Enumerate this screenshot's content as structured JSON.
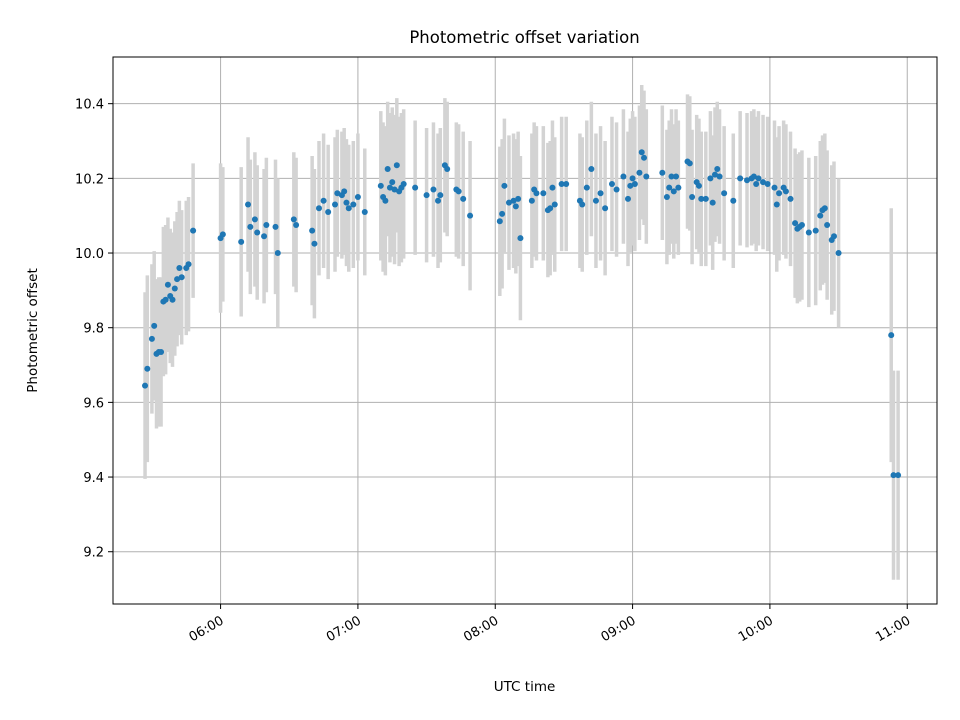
{
  "chart_data": {
    "type": "scatter",
    "title": "Photometric offset variation",
    "xlabel": "UTC time",
    "ylabel": "Photometric offset",
    "x_ticks": [
      "06:00",
      "07:00",
      "08:00",
      "09:00",
      "10:00",
      "11:00"
    ],
    "y_ticks": [
      "9.2",
      "9.4",
      "9.6",
      "9.8",
      "10.0",
      "10.2",
      "10.4"
    ],
    "xlim": [
      "05:13",
      "11:13"
    ],
    "ylim": [
      9.06,
      10.525
    ],
    "grid": true,
    "error_bars": true,
    "colors": {
      "marker": "#1f77b4",
      "errorbar": "#d3d3d3",
      "grid": "#b0b0b0"
    },
    "series": [
      {
        "points": [
          {
            "x": "05:27",
            "y": 9.645,
            "err": 0.25
          },
          {
            "x": "05:28",
            "y": 9.69,
            "err": 0.25
          },
          {
            "x": "05:30",
            "y": 9.77,
            "err": 0.2
          },
          {
            "x": "05:31",
            "y": 9.805,
            "err": 0.2
          },
          {
            "x": "05:32",
            "y": 9.73,
            "err": 0.2
          },
          {
            "x": "05:33",
            "y": 9.735,
            "err": 0.2
          },
          {
            "x": "05:34",
            "y": 9.735,
            "err": 0.2
          },
          {
            "x": "05:35",
            "y": 9.87,
            "err": 0.2
          },
          {
            "x": "05:36",
            "y": 9.875,
            "err": 0.2
          },
          {
            "x": "05:37",
            "y": 9.915,
            "err": 0.18
          },
          {
            "x": "05:38",
            "y": 9.885,
            "err": 0.18
          },
          {
            "x": "05:39",
            "y": 9.875,
            "err": 0.18
          },
          {
            "x": "05:40",
            "y": 9.905,
            "err": 0.18
          },
          {
            "x": "05:41",
            "y": 9.93,
            "err": 0.18
          },
          {
            "x": "05:42",
            "y": 9.96,
            "err": 0.18
          },
          {
            "x": "05:43",
            "y": 9.935,
            "err": 0.18
          },
          {
            "x": "05:45",
            "y": 9.96,
            "err": 0.18
          },
          {
            "x": "05:46",
            "y": 9.97,
            "err": 0.18
          },
          {
            "x": "05:48",
            "y": 10.06,
            "err": 0.18
          },
          {
            "x": "06:00",
            "y": 10.04,
            "err": 0.2
          },
          {
            "x": "06:01",
            "y": 10.05,
            "err": 0.18
          },
          {
            "x": "06:09",
            "y": 10.03,
            "err": 0.2
          },
          {
            "x": "06:12",
            "y": 10.13,
            "err": 0.18
          },
          {
            "x": "06:13",
            "y": 10.07,
            "err": 0.18
          },
          {
            "x": "06:15",
            "y": 10.09,
            "err": 0.18
          },
          {
            "x": "06:16",
            "y": 10.055,
            "err": 0.18
          },
          {
            "x": "06:19",
            "y": 10.045,
            "err": 0.18
          },
          {
            "x": "06:20",
            "y": 10.075,
            "err": 0.18
          },
          {
            "x": "06:24",
            "y": 10.07,
            "err": 0.18
          },
          {
            "x": "06:25",
            "y": 10.0,
            "err": 0.2
          },
          {
            "x": "06:32",
            "y": 10.09,
            "err": 0.18
          },
          {
            "x": "06:33",
            "y": 10.075,
            "err": 0.18
          },
          {
            "x": "06:40",
            "y": 10.06,
            "err": 0.2
          },
          {
            "x": "06:41",
            "y": 10.025,
            "err": 0.2
          },
          {
            "x": "06:43",
            "y": 10.12,
            "err": 0.18
          },
          {
            "x": "06:45",
            "y": 10.14,
            "err": 0.18
          },
          {
            "x": "06:47",
            "y": 10.11,
            "err": 0.18
          },
          {
            "x": "06:50",
            "y": 10.13,
            "err": 0.18
          },
          {
            "x": "06:51",
            "y": 10.16,
            "err": 0.17
          },
          {
            "x": "06:53",
            "y": 10.155,
            "err": 0.17
          },
          {
            "x": "06:54",
            "y": 10.165,
            "err": 0.17
          },
          {
            "x": "06:55",
            "y": 10.135,
            "err": 0.17
          },
          {
            "x": "06:56",
            "y": 10.12,
            "err": 0.17
          },
          {
            "x": "06:58",
            "y": 10.13,
            "err": 0.17
          },
          {
            "x": "07:00",
            "y": 10.15,
            "err": 0.17
          },
          {
            "x": "07:03",
            "y": 10.11,
            "err": 0.17
          },
          {
            "x": "07:10",
            "y": 10.18,
            "err": 0.2
          },
          {
            "x": "07:11",
            "y": 10.15,
            "err": 0.2
          },
          {
            "x": "07:12",
            "y": 10.14,
            "err": 0.2
          },
          {
            "x": "07:13",
            "y": 10.225,
            "err": 0.18
          },
          {
            "x": "07:14",
            "y": 10.175,
            "err": 0.2
          },
          {
            "x": "07:15",
            "y": 10.19,
            "err": 0.2
          },
          {
            "x": "07:16",
            "y": 10.17,
            "err": 0.2
          },
          {
            "x": "07:17",
            "y": 10.235,
            "err": 0.18
          },
          {
            "x": "07:18",
            "y": 10.165,
            "err": 0.2
          },
          {
            "x": "07:19",
            "y": 10.175,
            "err": 0.2
          },
          {
            "x": "07:20",
            "y": 10.185,
            "err": 0.2
          },
          {
            "x": "07:25",
            "y": 10.175,
            "err": 0.18
          },
          {
            "x": "07:30",
            "y": 10.155,
            "err": 0.18
          },
          {
            "x": "07:33",
            "y": 10.17,
            "err": 0.18
          },
          {
            "x": "07:35",
            "y": 10.14,
            "err": 0.18
          },
          {
            "x": "07:36",
            "y": 10.155,
            "err": 0.18
          },
          {
            "x": "07:38",
            "y": 10.235,
            "err": 0.18
          },
          {
            "x": "07:39",
            "y": 10.225,
            "err": 0.18
          },
          {
            "x": "07:43",
            "y": 10.17,
            "err": 0.18
          },
          {
            "x": "07:44",
            "y": 10.165,
            "err": 0.18
          },
          {
            "x": "07:46",
            "y": 10.145,
            "err": 0.18
          },
          {
            "x": "07:49",
            "y": 10.1,
            "err": 0.2
          },
          {
            "x": "08:02",
            "y": 10.085,
            "err": 0.2
          },
          {
            "x": "08:03",
            "y": 10.105,
            "err": 0.2
          },
          {
            "x": "08:04",
            "y": 10.18,
            "err": 0.18
          },
          {
            "x": "08:06",
            "y": 10.135,
            "err": 0.18
          },
          {
            "x": "08:08",
            "y": 10.14,
            "err": 0.18
          },
          {
            "x": "08:09",
            "y": 10.125,
            "err": 0.18
          },
          {
            "x": "08:10",
            "y": 10.145,
            "err": 0.18
          },
          {
            "x": "08:11",
            "y": 10.04,
            "err": 0.22
          },
          {
            "x": "08:16",
            "y": 10.14,
            "err": 0.18
          },
          {
            "x": "08:17",
            "y": 10.17,
            "err": 0.18
          },
          {
            "x": "08:18",
            "y": 10.16,
            "err": 0.18
          },
          {
            "x": "08:21",
            "y": 10.16,
            "err": 0.18
          },
          {
            "x": "08:23",
            "y": 10.115,
            "err": 0.18
          },
          {
            "x": "08:24",
            "y": 10.12,
            "err": 0.18
          },
          {
            "x": "08:25",
            "y": 10.175,
            "err": 0.18
          },
          {
            "x": "08:26",
            "y": 10.13,
            "err": 0.18
          },
          {
            "x": "08:29",
            "y": 10.185,
            "err": 0.18
          },
          {
            "x": "08:31",
            "y": 10.185,
            "err": 0.18
          },
          {
            "x": "08:37",
            "y": 10.14,
            "err": 0.18
          },
          {
            "x": "08:38",
            "y": 10.13,
            "err": 0.18
          },
          {
            "x": "08:40",
            "y": 10.175,
            "err": 0.18
          },
          {
            "x": "08:42",
            "y": 10.225,
            "err": 0.18
          },
          {
            "x": "08:44",
            "y": 10.14,
            "err": 0.18
          },
          {
            "x": "08:46",
            "y": 10.16,
            "err": 0.18
          },
          {
            "x": "08:48",
            "y": 10.12,
            "err": 0.18
          },
          {
            "x": "08:51",
            "y": 10.185,
            "err": 0.18
          },
          {
            "x": "08:53",
            "y": 10.17,
            "err": 0.18
          },
          {
            "x": "08:56",
            "y": 10.205,
            "err": 0.18
          },
          {
            "x": "08:58",
            "y": 10.145,
            "err": 0.18
          },
          {
            "x": "08:59",
            "y": 10.18,
            "err": 0.18
          },
          {
            "x": "09:00",
            "y": 10.2,
            "err": 0.18
          },
          {
            "x": "09:01",
            "y": 10.185,
            "err": 0.18
          },
          {
            "x": "09:03",
            "y": 10.215,
            "err": 0.18
          },
          {
            "x": "09:04",
            "y": 10.27,
            "err": 0.18
          },
          {
            "x": "09:05",
            "y": 10.255,
            "err": 0.18
          },
          {
            "x": "09:06",
            "y": 10.205,
            "err": 0.18
          },
          {
            "x": "09:13",
            "y": 10.215,
            "err": 0.18
          },
          {
            "x": "09:15",
            "y": 10.15,
            "err": 0.18
          },
          {
            "x": "09:16",
            "y": 10.175,
            "err": 0.18
          },
          {
            "x": "09:17",
            "y": 10.205,
            "err": 0.18
          },
          {
            "x": "09:18",
            "y": 10.165,
            "err": 0.18
          },
          {
            "x": "09:19",
            "y": 10.205,
            "err": 0.18
          },
          {
            "x": "09:20",
            "y": 10.175,
            "err": 0.18
          },
          {
            "x": "09:24",
            "y": 10.245,
            "err": 0.18
          },
          {
            "x": "09:25",
            "y": 10.24,
            "err": 0.18
          },
          {
            "x": "09:26",
            "y": 10.15,
            "err": 0.18
          },
          {
            "x": "09:28",
            "y": 10.19,
            "err": 0.18
          },
          {
            "x": "09:29",
            "y": 10.18,
            "err": 0.18
          },
          {
            "x": "09:30",
            "y": 10.145,
            "err": 0.18
          },
          {
            "x": "09:32",
            "y": 10.145,
            "err": 0.18
          },
          {
            "x": "09:34",
            "y": 10.2,
            "err": 0.18
          },
          {
            "x": "09:35",
            "y": 10.135,
            "err": 0.18
          },
          {
            "x": "09:36",
            "y": 10.21,
            "err": 0.18
          },
          {
            "x": "09:37",
            "y": 10.225,
            "err": 0.18
          },
          {
            "x": "09:38",
            "y": 10.205,
            "err": 0.18
          },
          {
            "x": "09:40",
            "y": 10.16,
            "err": 0.18
          },
          {
            "x": "09:44",
            "y": 10.14,
            "err": 0.18
          },
          {
            "x": "09:47",
            "y": 10.2,
            "err": 0.18
          },
          {
            "x": "09:50",
            "y": 10.195,
            "err": 0.18
          },
          {
            "x": "09:52",
            "y": 10.2,
            "err": 0.18
          },
          {
            "x": "09:53",
            "y": 10.205,
            "err": 0.18
          },
          {
            "x": "09:54",
            "y": 10.185,
            "err": 0.18
          },
          {
            "x": "09:55",
            "y": 10.2,
            "err": 0.18
          },
          {
            "x": "09:57",
            "y": 10.19,
            "err": 0.18
          },
          {
            "x": "09:59",
            "y": 10.185,
            "err": 0.18
          },
          {
            "x": "10:02",
            "y": 10.175,
            "err": 0.18
          },
          {
            "x": "10:03",
            "y": 10.13,
            "err": 0.18
          },
          {
            "x": "10:04",
            "y": 10.16,
            "err": 0.18
          },
          {
            "x": "10:06",
            "y": 10.175,
            "err": 0.18
          },
          {
            "x": "10:07",
            "y": 10.165,
            "err": 0.18
          },
          {
            "x": "10:09",
            "y": 10.145,
            "err": 0.18
          },
          {
            "x": "10:11",
            "y": 10.08,
            "err": 0.2
          },
          {
            "x": "10:12",
            "y": 10.065,
            "err": 0.2
          },
          {
            "x": "10:13",
            "y": 10.07,
            "err": 0.2
          },
          {
            "x": "10:14",
            "y": 10.075,
            "err": 0.2
          },
          {
            "x": "10:17",
            "y": 10.055,
            "err": 0.2
          },
          {
            "x": "10:20",
            "y": 10.06,
            "err": 0.2
          },
          {
            "x": "10:22",
            "y": 10.1,
            "err": 0.2
          },
          {
            "x": "10:23",
            "y": 10.115,
            "err": 0.2
          },
          {
            "x": "10:24",
            "y": 10.12,
            "err": 0.2
          },
          {
            "x": "10:25",
            "y": 10.075,
            "err": 0.2
          },
          {
            "x": "10:27",
            "y": 10.035,
            "err": 0.2
          },
          {
            "x": "10:28",
            "y": 10.045,
            "err": 0.2
          },
          {
            "x": "10:30",
            "y": 10.0,
            "err": 0.2
          },
          {
            "x": "10:53",
            "y": 9.78,
            "err": 0.34
          },
          {
            "x": "10:54",
            "y": 9.405,
            "err": 0.28
          },
          {
            "x": "10:56",
            "y": 9.405,
            "err": 0.28
          }
        ]
      }
    ]
  }
}
